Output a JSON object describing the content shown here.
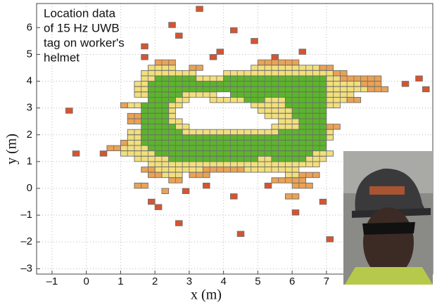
{
  "chart_data": {
    "type": "heatmap-runs",
    "annotation": [
      "Location data",
      "of 15 Hz UWB",
      "tag on worker's",
      "helmet"
    ],
    "x_label": "x (m)",
    "y_label": "y (m)",
    "xlim": [
      -1.45,
      10.1
    ],
    "ylim": [
      -3.2,
      6.9
    ],
    "xticks": [
      {
        "value": -1,
        "label": "–1"
      },
      0,
      1,
      2,
      3,
      4,
      5,
      6,
      7
    ],
    "yticks": [
      {
        "value": -3,
        "label": "–3"
      },
      {
        "value": -2,
        "label": "–2"
      },
      {
        "value": -1,
        "label": "–1"
      },
      0,
      1,
      2,
      3,
      4,
      5,
      6
    ],
    "grid": true,
    "cell": 0.2,
    "series": [
      {
        "color": "#5bb52a",
        "runs": [
          [
            4.0,
            2.0,
            3.2
          ],
          [
            4.0,
            4.0,
            7.0
          ],
          [
            3.8,
            1.8,
            7.0
          ],
          [
            3.6,
            1.8,
            7.0
          ],
          [
            3.4,
            1.8,
            2.8
          ],
          [
            3.4,
            4.2,
            7.0
          ],
          [
            3.2,
            1.8,
            2.6
          ],
          [
            3.2,
            4.6,
            5.2
          ],
          [
            3.2,
            5.8,
            7.0
          ],
          [
            3.0,
            1.6,
            2.4
          ],
          [
            3.0,
            5.8,
            7.0
          ],
          [
            2.8,
            1.6,
            2.4
          ],
          [
            2.8,
            6.0,
            7.0
          ],
          [
            2.6,
            1.6,
            2.4
          ],
          [
            2.6,
            6.0,
            7.0
          ],
          [
            2.4,
            1.6,
            2.4
          ],
          [
            2.4,
            6.2,
            7.0
          ],
          [
            2.2,
            1.6,
            2.6
          ],
          [
            2.2,
            6.2,
            7.0
          ],
          [
            2.0,
            1.6,
            2.8
          ],
          [
            2.0,
            5.6,
            7.0
          ],
          [
            1.8,
            1.6,
            7.0
          ],
          [
            1.6,
            1.6,
            7.0
          ],
          [
            1.4,
            1.8,
            7.0
          ],
          [
            1.2,
            2.0,
            6.6
          ],
          [
            1.0,
            2.4,
            5.0
          ],
          [
            1.0,
            5.4,
            6.4
          ]
        ]
      },
      {
        "color": "#f2df7c",
        "runs": [
          [
            4.4,
            1.8,
            2.6
          ],
          [
            4.4,
            4.8,
            6.8
          ],
          [
            4.2,
            1.6,
            3.2
          ],
          [
            4.2,
            4.0,
            7.2
          ],
          [
            4.0,
            1.6,
            2.0
          ],
          [
            4.0,
            3.2,
            4.0
          ],
          [
            4.0,
            7.0,
            7.4
          ],
          [
            3.8,
            1.4,
            1.8
          ],
          [
            3.8,
            7.0,
            8.0
          ],
          [
            3.6,
            1.4,
            1.8
          ],
          [
            3.6,
            7.0,
            8.2
          ],
          [
            3.4,
            2.8,
            3.8
          ],
          [
            3.4,
            1.4,
            1.8
          ],
          [
            3.4,
            7.0,
            7.8
          ],
          [
            3.2,
            2.6,
            3.0
          ],
          [
            3.2,
            3.6,
            4.6
          ],
          [
            3.2,
            5.2,
            5.8
          ],
          [
            3.2,
            7.0,
            7.6
          ],
          [
            3.0,
            2.4,
            2.8
          ],
          [
            3.0,
            4.8,
            5.8
          ],
          [
            3.0,
            1.2,
            1.6
          ],
          [
            3.0,
            7.0,
            7.4
          ],
          [
            2.8,
            2.4,
            2.6
          ],
          [
            2.8,
            5.0,
            6.0
          ],
          [
            2.6,
            2.4,
            2.6
          ],
          [
            2.6,
            5.2,
            6.0
          ],
          [
            2.4,
            2.4,
            2.8
          ],
          [
            2.4,
            5.6,
            6.2
          ],
          [
            2.2,
            2.6,
            3.0
          ],
          [
            2.2,
            5.4,
            6.2
          ],
          [
            2.0,
            2.8,
            5.6
          ],
          [
            2.0,
            1.2,
            1.6
          ],
          [
            2.0,
            7.0,
            7.2
          ],
          [
            1.8,
            1.2,
            1.6
          ],
          [
            1.8,
            7.0,
            7.2
          ],
          [
            1.6,
            1.2,
            1.6
          ],
          [
            1.4,
            1.0,
            1.8
          ],
          [
            1.2,
            1.0,
            2.0
          ],
          [
            1.2,
            6.6,
            7.2
          ],
          [
            1.0,
            1.4,
            2.4
          ],
          [
            1.0,
            5.0,
            5.4
          ],
          [
            1.0,
            6.4,
            7.0
          ],
          [
            0.8,
            1.8,
            6.8
          ],
          [
            0.6,
            2.0,
            3.4
          ],
          [
            0.6,
            4.6,
            6.2
          ],
          [
            0.4,
            2.2,
            2.8
          ],
          [
            0.4,
            5.8,
            6.2
          ]
        ]
      },
      {
        "color": "#eba254",
        "runs": [
          [
            4.6,
            2.0,
            2.6
          ],
          [
            4.6,
            5.0,
            6.2
          ],
          [
            4.4,
            3.0,
            3.4
          ],
          [
            4.4,
            6.8,
            7.2
          ],
          [
            4.2,
            7.2,
            7.6
          ],
          [
            4.0,
            7.4,
            8.6
          ],
          [
            3.8,
            8.0,
            8.6
          ],
          [
            3.6,
            8.2,
            8.8
          ],
          [
            3.2,
            7.6,
            8.0
          ],
          [
            3.0,
            1.0,
            1.2
          ],
          [
            2.6,
            1.2,
            1.6
          ],
          [
            2.4,
            1.2,
            1.6
          ],
          [
            2.2,
            7.0,
            7.4
          ],
          [
            1.6,
            1.0,
            1.2
          ],
          [
            1.4,
            0.6,
            1.0
          ],
          [
            0.6,
            1.6,
            2.0
          ],
          [
            0.6,
            3.4,
            4.6
          ],
          [
            0.4,
            1.8,
            2.2
          ],
          [
            0.4,
            3.0,
            3.6
          ],
          [
            0.4,
            6.2,
            6.8
          ],
          [
            0.2,
            2.4,
            2.8
          ],
          [
            0.2,
            5.4,
            6.4
          ],
          [
            0.0,
            1.4,
            1.8
          ],
          [
            0.0,
            6.0,
            6.6
          ],
          [
            -0.2,
            2.2,
            2.4
          ],
          [
            -0.4,
            5.8,
            6.2
          ]
        ]
      },
      {
        "color": "#d9532e",
        "runs": [
          [
            6.6,
            3.2,
            3.4
          ],
          [
            6.0,
            2.4,
            2.6
          ],
          [
            5.8,
            4.2,
            4.4
          ],
          [
            5.6,
            2.6,
            2.8
          ],
          [
            5.4,
            4.8,
            5.0
          ],
          [
            5.2,
            1.6,
            1.8
          ],
          [
            5.0,
            3.8,
            4.0
          ],
          [
            5.0,
            6.2,
            6.4
          ],
          [
            4.8,
            1.6,
            1.8
          ],
          [
            4.8,
            3.6,
            3.8
          ],
          [
            4.8,
            5.4,
            5.6
          ],
          [
            4.0,
            9.6,
            9.8
          ],
          [
            3.8,
            9.2,
            9.4
          ],
          [
            3.6,
            9.8,
            10.0
          ],
          [
            2.8,
            -0.6,
            -0.4
          ],
          [
            1.2,
            -0.4,
            -0.2
          ],
          [
            1.2,
            0.4,
            0.6
          ],
          [
            0.0,
            3.4,
            3.6
          ],
          [
            0.0,
            5.2,
            5.4
          ],
          [
            -0.2,
            2.8,
            3.0
          ],
          [
            -0.4,
            4.2,
            4.4
          ],
          [
            -0.6,
            1.8,
            2.0
          ],
          [
            -0.6,
            6.8,
            7.0
          ],
          [
            -0.8,
            2.0,
            2.2
          ],
          [
            -1.0,
            6.0,
            6.2
          ],
          [
            -1.4,
            2.6,
            2.8
          ],
          [
            -1.8,
            4.4,
            4.6
          ],
          [
            -2.0,
            7.0,
            7.2
          ]
        ]
      }
    ]
  }
}
